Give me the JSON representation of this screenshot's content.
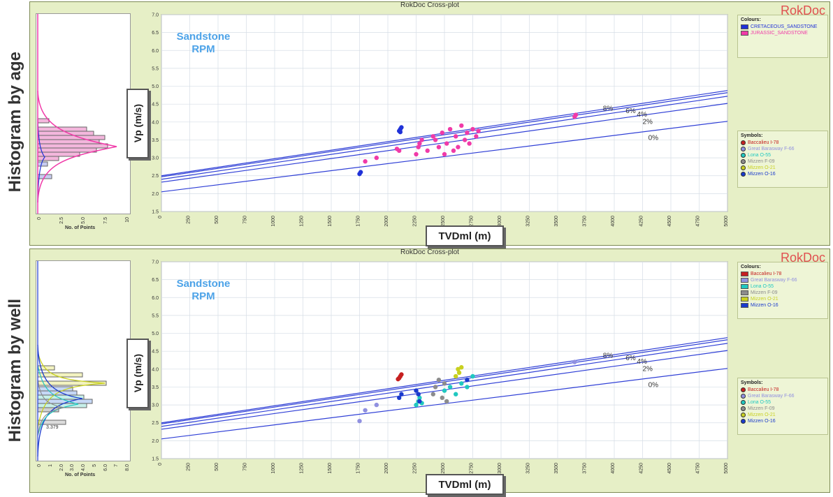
{
  "panels": [
    {
      "side_label": "Histogram by age",
      "title": "RokDoc Cross-plot",
      "brand": "RokDoc",
      "hist_xticks": [
        "0",
        "2.5",
        "5.0",
        "7.5",
        "10"
      ],
      "hist_xlabel": "No. of Points",
      "legend_colours_title": "Colours:",
      "legend_colours": [
        {
          "label": "CRETACEOUS_SANDSTONE",
          "color": "#2032d8"
        },
        {
          "label": "JURASSIC_SANDSTONE",
          "color": "#f03aa8"
        }
      ],
      "legend_symbols_title": "Symbols:",
      "legend_symbols": [
        {
          "label": "Baccalieu I-78",
          "color": "#c62020"
        },
        {
          "label": "Great Barasway F-66",
          "color": "#9090e0"
        },
        {
          "label": "Lona O-55",
          "color": "#20c8c0"
        },
        {
          "label": "Mizzen F-09",
          "color": "#8c8c8c"
        },
        {
          "label": "Mizzen O-21",
          "color": "#c8d020"
        },
        {
          "label": "Mizzen O-16",
          "color": "#1a3acd"
        }
      ],
      "xaxis_label": "TVDml (m)",
      "yaxis_label": "Vp (m/s)"
    },
    {
      "side_label": "Histogram by well",
      "title": "RokDoc Cross-plot",
      "brand": "RokDoc",
      "hist_xticks": [
        "0",
        "1",
        "2.0",
        "3.0",
        "4.0",
        "5",
        "6.0",
        "7",
        "8.0"
      ],
      "hist_xlabel": "No. of Points",
      "hist_annotation": "3.379",
      "legend_colours_title": "Colours:",
      "legend_colours": [
        {
          "label": "Baccalieu I-78",
          "color": "#c62020"
        },
        {
          "label": "Great Barasway F-66",
          "color": "#9090e0"
        },
        {
          "label": "Lona O-55",
          "color": "#20c8c0"
        },
        {
          "label": "Mizzen F-09",
          "color": "#8c8c8c"
        },
        {
          "label": "Mizzen O-21",
          "color": "#c8d020"
        },
        {
          "label": "Mizzen O-16",
          "color": "#1a3acd"
        }
      ],
      "legend_symbols_title": "Symbols:",
      "legend_symbols": [
        {
          "label": "Baccalieu I-78",
          "color": "#c62020"
        },
        {
          "label": "Great Barasway F-66",
          "color": "#9090e0"
        },
        {
          "label": "Lona O-55",
          "color": "#20c8c0"
        },
        {
          "label": "Mizzen F-09",
          "color": "#8c8c8c"
        },
        {
          "label": "Mizzen O-21",
          "color": "#c8d020"
        },
        {
          "label": "Mizzen O-16",
          "color": "#1a3acd"
        }
      ],
      "xaxis_label": "TVDml (m)",
      "yaxis_label": "Vp (m/s)"
    }
  ],
  "chart_data": [
    {
      "type": "scatter",
      "title": "RokDoc Cross-plot",
      "annotation": "Sandstone\nRPM",
      "xlabel": "TVDml (m)",
      "ylabel": "Vp (m/s)",
      "xlim": [
        0,
        5000
      ],
      "ylim": [
        1.5,
        7.0
      ],
      "xticks": [
        0,
        250,
        500,
        750,
        1000,
        1250,
        1500,
        1750,
        2000,
        2250,
        2500,
        2750,
        3000,
        3250,
        3500,
        3750,
        4000,
        4250,
        4500,
        4750,
        5000
      ],
      "yticks": [
        1.5,
        2.0,
        2.5,
        3.0,
        3.5,
        4.0,
        4.5,
        5.0,
        5.5,
        6.0,
        6.5,
        7.0
      ],
      "grid": true,
      "rpm_lines": [
        {
          "label": "8%",
          "x": [
            0,
            5000
          ],
          "y": [
            2.5,
            4.88
          ]
        },
        {
          "label": "6%",
          "x": [
            0,
            5000
          ],
          "y": [
            2.47,
            4.82
          ]
        },
        {
          "label": "4%",
          "x": [
            0,
            5000
          ],
          "y": [
            2.4,
            4.72
          ]
        },
        {
          "label": "2%",
          "x": [
            0,
            5000
          ],
          "y": [
            2.32,
            4.52
          ]
        },
        {
          "label": "0%",
          "x": [
            0,
            5000
          ],
          "y": [
            2.05,
            4.02
          ]
        }
      ],
      "series": [
        {
          "name": "CRETACEOUS_SANDSTONE",
          "color": "#2032d8",
          "points": [
            [
              1750,
              2.55
            ],
            [
              1760,
              2.6
            ],
            [
              2100,
              3.75
            ],
            [
              2110,
              3.8
            ],
            [
              2120,
              3.85
            ],
            [
              2110,
              3.72
            ]
          ]
        },
        {
          "name": "JURASSIC_SANDSTONE",
          "color": "#f03aa8",
          "points": [
            [
              1800,
              2.9
            ],
            [
              1900,
              3.0
            ],
            [
              2080,
              3.25
            ],
            [
              2100,
              3.2
            ],
            [
              2250,
              3.1
            ],
            [
              2270,
              3.3
            ],
            [
              2280,
              3.4
            ],
            [
              2300,
              3.5
            ],
            [
              2350,
              3.2
            ],
            [
              2400,
              3.6
            ],
            [
              2420,
              3.5
            ],
            [
              2450,
              3.3
            ],
            [
              2480,
              3.7
            ],
            [
              2500,
              3.1
            ],
            [
              2520,
              3.4
            ],
            [
              2550,
              3.8
            ],
            [
              2580,
              3.2
            ],
            [
              2600,
              3.6
            ],
            [
              2620,
              3.3
            ],
            [
              2650,
              3.9
            ],
            [
              2680,
              3.5
            ],
            [
              2700,
              3.7
            ],
            [
              2720,
              3.4
            ],
            [
              2750,
              3.8
            ],
            [
              2780,
              3.6
            ],
            [
              2800,
              3.75
            ],
            [
              3650,
              4.15
            ],
            [
              3660,
              4.2
            ]
          ]
        }
      ],
      "rpm_labels_visible": [
        "8%",
        "6%",
        "4%",
        "2%",
        "0%"
      ]
    },
    {
      "type": "scatter",
      "title": "RokDoc Cross-plot",
      "annotation": "Sandstone\nRPM",
      "xlabel": "TVDml (m)",
      "ylabel": "Vp (m/s)",
      "xlim": [
        0,
        5000
      ],
      "ylim": [
        1.5,
        7.0
      ],
      "xticks": [
        0,
        250,
        500,
        750,
        1000,
        1250,
        1500,
        1750,
        2000,
        2250,
        2500,
        2750,
        3000,
        3250,
        3500,
        3750,
        4000,
        4250,
        4500,
        4750,
        5000
      ],
      "yticks": [
        1.5,
        2.0,
        2.5,
        3.0,
        3.5,
        4.0,
        4.5,
        5.0,
        5.5,
        6.0,
        6.5,
        7.0
      ],
      "grid": true,
      "rpm_lines": [
        {
          "label": "8%",
          "x": [
            0,
            5000
          ],
          "y": [
            2.5,
            4.88
          ]
        },
        {
          "label": "6%",
          "x": [
            0,
            5000
          ],
          "y": [
            2.47,
            4.82
          ]
        },
        {
          "label": "4%",
          "x": [
            0,
            5000
          ],
          "y": [
            2.4,
            4.72
          ]
        },
        {
          "label": "2%",
          "x": [
            0,
            5000
          ],
          "y": [
            2.32,
            4.52
          ]
        },
        {
          "label": "0%",
          "x": [
            0,
            5000
          ],
          "y": [
            2.05,
            4.02
          ]
        }
      ],
      "series": [
        {
          "name": "Baccalieu I-78",
          "color": "#c62020",
          "points": [
            [
              2100,
              3.75
            ],
            [
              2110,
              3.8
            ],
            [
              2120,
              3.85
            ],
            [
              2090,
              3.72
            ]
          ]
        },
        {
          "name": "Great Barasway F-66",
          "color": "#9090e0",
          "points": [
            [
              1750,
              2.55
            ],
            [
              1800,
              2.85
            ],
            [
              1900,
              3.0
            ],
            [
              3650,
              4.2
            ]
          ]
        },
        {
          "name": "Lona O-55",
          "color": "#20c8c0",
          "points": [
            [
              2250,
              3.0
            ],
            [
              2270,
              3.1
            ],
            [
              2280,
              3.2
            ],
            [
              2300,
              3.05
            ],
            [
              2500,
              3.4
            ],
            [
              2550,
              3.5
            ],
            [
              2600,
              3.3
            ],
            [
              2650,
              3.6
            ],
            [
              2700,
              3.5
            ],
            [
              2750,
              3.8
            ]
          ]
        },
        {
          "name": "Mizzen F-09",
          "color": "#8c8c8c",
          "points": [
            [
              2400,
              3.3
            ],
            [
              2420,
              3.5
            ],
            [
              2450,
              3.7
            ],
            [
              2480,
              3.2
            ],
            [
              2500,
              3.6
            ],
            [
              2520,
              3.1
            ]
          ]
        },
        {
          "name": "Mizzen O-21",
          "color": "#c8d020",
          "points": [
            [
              2600,
              3.8
            ],
            [
              2620,
              4.0
            ],
            [
              2650,
              4.05
            ],
            [
              2630,
              3.9
            ]
          ]
        },
        {
          "name": "Mizzen O-16",
          "color": "#1a3acd",
          "points": [
            [
              2100,
              3.2
            ],
            [
              2120,
              3.3
            ],
            [
              2250,
              3.4
            ],
            [
              2270,
              3.3
            ],
            [
              2280,
              3.1
            ],
            [
              2700,
              3.7
            ]
          ]
        }
      ]
    }
  ]
}
